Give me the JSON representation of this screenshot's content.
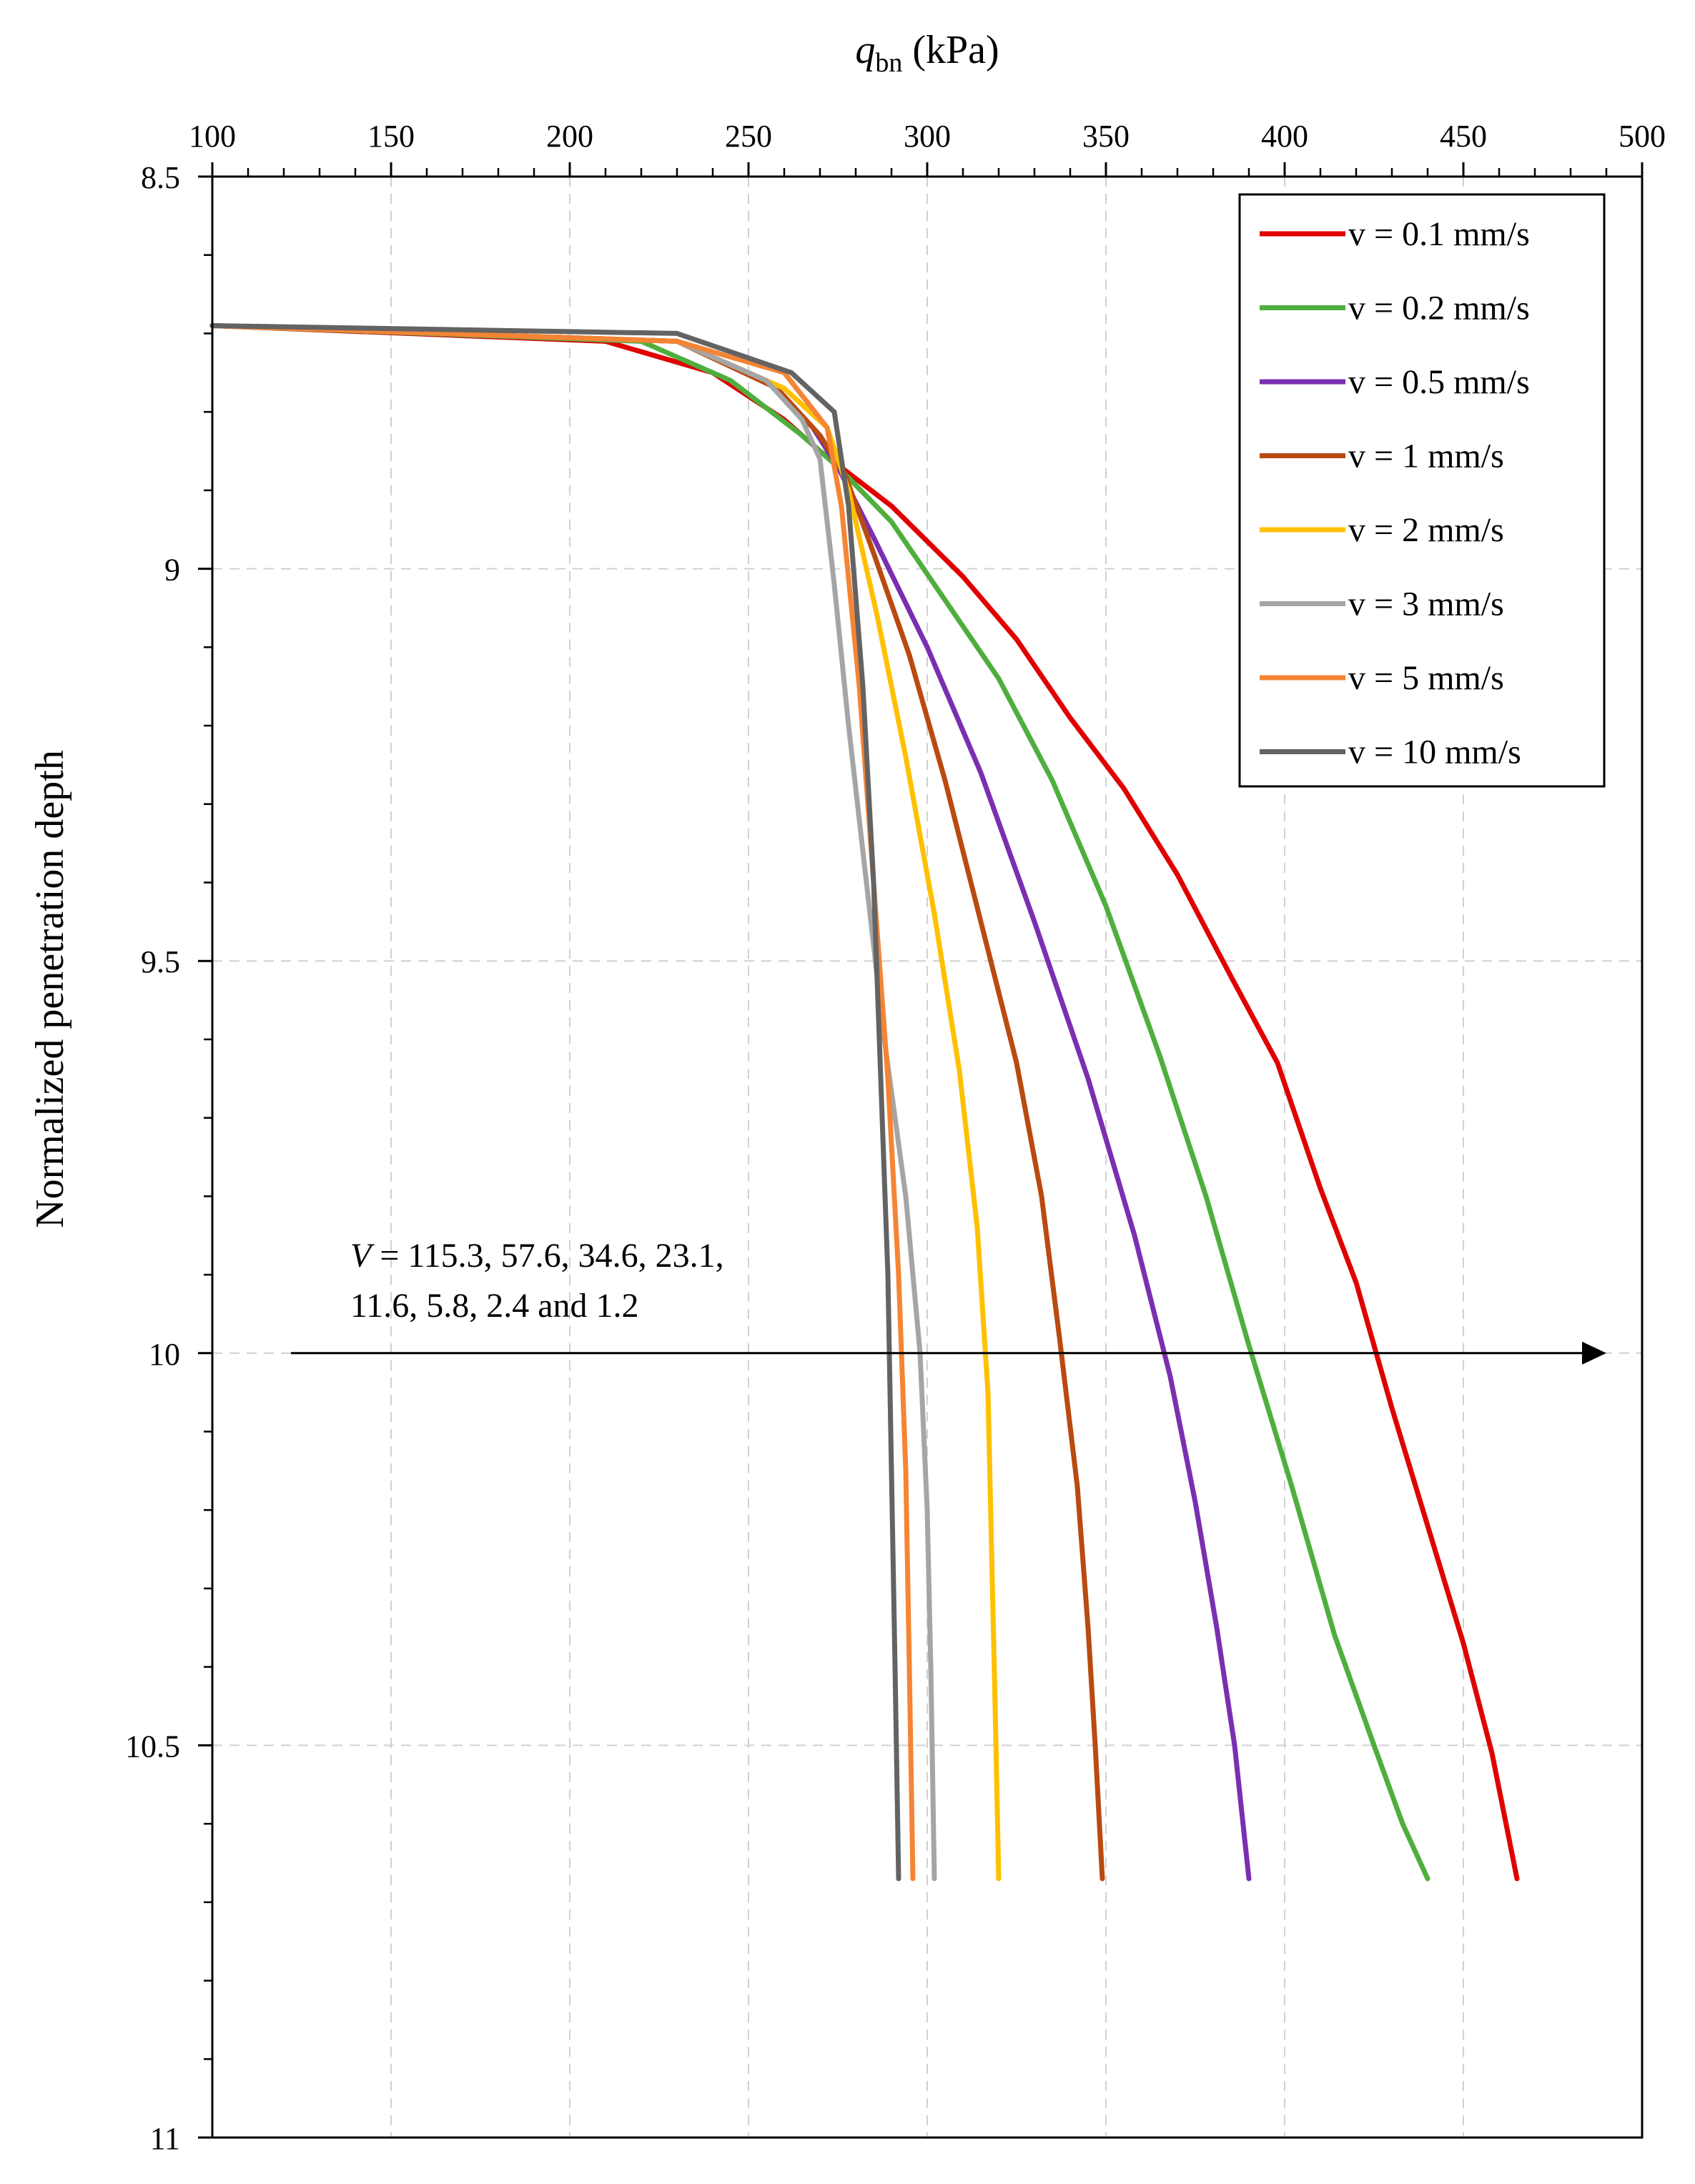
{
  "chart_data": {
    "type": "line",
    "title": "",
    "xlabel": {
      "italic": "q",
      "sub": "bn",
      "rest": " (kPa)"
    },
    "ylabel": "Normalized penetration depth",
    "xlim": [
      100,
      500
    ],
    "ylim": [
      8.5,
      11
    ],
    "y_inverted": true,
    "x_axis_position": "top",
    "x_ticks": [
      "100",
      "150",
      "200",
      "250",
      "300",
      "350",
      "400",
      "450",
      "500"
    ],
    "y_ticks": [
      "8.5",
      "9",
      "9.5",
      "10",
      "10.5",
      "11"
    ],
    "grid": "dashed",
    "legend_position": "top-right",
    "series": [
      {
        "name": "v = 0.1 mm/s",
        "color": "#e00000",
        "points": [
          [
            100,
            8.69
          ],
          [
            210,
            8.71
          ],
          [
            240,
            8.75
          ],
          [
            260,
            8.81
          ],
          [
            270,
            8.85
          ],
          [
            290,
            8.92
          ],
          [
            310,
            9.01
          ],
          [
            325,
            9.09
          ],
          [
            340,
            9.19
          ],
          [
            355,
            9.28
          ],
          [
            370,
            9.39
          ],
          [
            385,
            9.52
          ],
          [
            398,
            9.63
          ],
          [
            410,
            9.79
          ],
          [
            420,
            9.91
          ],
          [
            430,
            10.07
          ],
          [
            440,
            10.22
          ],
          [
            450,
            10.37
          ],
          [
            458,
            10.51
          ],
          [
            465,
            10.67
          ]
        ]
      },
      {
        "name": "v = 0.2 mm/s",
        "color": "#4fae3e",
        "points": [
          [
            100,
            8.69
          ],
          [
            220,
            8.71
          ],
          [
            245,
            8.76
          ],
          [
            265,
            8.83
          ],
          [
            275,
            8.87
          ],
          [
            290,
            8.94
          ],
          [
            305,
            9.04
          ],
          [
            320,
            9.14
          ],
          [
            335,
            9.27
          ],
          [
            350,
            9.43
          ],
          [
            365,
            9.62
          ],
          [
            378,
            9.8
          ],
          [
            390,
            9.99
          ],
          [
            402,
            10.17
          ],
          [
            414,
            10.36
          ],
          [
            425,
            10.5
          ],
          [
            433,
            10.6
          ],
          [
            440,
            10.67
          ]
        ]
      },
      {
        "name": "v = 0.5 mm/s",
        "color": "#7a2fb0",
        "points": [
          [
            100,
            8.69
          ],
          [
            230,
            8.71
          ],
          [
            255,
            8.76
          ],
          [
            268,
            8.82
          ],
          [
            275,
            8.87
          ],
          [
            285,
            8.96
          ],
          [
            300,
            9.1
          ],
          [
            315,
            9.26
          ],
          [
            330,
            9.45
          ],
          [
            345,
            9.65
          ],
          [
            358,
            9.85
          ],
          [
            368,
            10.03
          ],
          [
            375,
            10.19
          ],
          [
            381,
            10.35
          ],
          [
            386,
            10.5
          ],
          [
            390,
            10.67
          ]
        ]
      },
      {
        "name": "v = 1 mm/s",
        "color": "#b94a10",
        "points": [
          [
            100,
            8.69
          ],
          [
            230,
            8.71
          ],
          [
            258,
            8.77
          ],
          [
            270,
            8.83
          ],
          [
            277,
            8.88
          ],
          [
            285,
            8.98
          ],
          [
            295,
            9.11
          ],
          [
            305,
            9.27
          ],
          [
            315,
            9.45
          ],
          [
            325,
            9.63
          ],
          [
            332,
            9.8
          ],
          [
            337,
            9.98
          ],
          [
            342,
            10.17
          ],
          [
            345,
            10.35
          ],
          [
            347,
            10.5
          ],
          [
            349,
            10.67
          ]
        ]
      },
      {
        "name": "v = 2 mm/s",
        "color": "#ffc000",
        "points": [
          [
            100,
            8.69
          ],
          [
            230,
            8.71
          ],
          [
            260,
            8.77
          ],
          [
            272,
            8.82
          ],
          [
            278,
            8.9
          ],
          [
            286,
            9.06
          ],
          [
            294,
            9.24
          ],
          [
            302,
            9.44
          ],
          [
            309,
            9.64
          ],
          [
            314,
            9.84
          ],
          [
            317,
            10.05
          ],
          [
            318,
            10.25
          ],
          [
            319,
            10.45
          ],
          [
            320,
            10.67
          ]
        ]
      },
      {
        "name": "v = 3 mm/s",
        "color": "#a5a5a5",
        "points": [
          [
            100,
            8.69
          ],
          [
            230,
            8.71
          ],
          [
            255,
            8.76
          ],
          [
            265,
            8.81
          ],
          [
            270,
            8.86
          ],
          [
            274,
            9.02
          ],
          [
            278,
            9.2
          ],
          [
            283,
            9.4
          ],
          [
            288,
            9.6
          ],
          [
            294,
            9.8
          ],
          [
            298,
            10.0
          ],
          [
            300,
            10.2
          ],
          [
            301,
            10.4
          ],
          [
            302,
            10.67
          ]
        ]
      },
      {
        "name": "v = 5 mm/s",
        "color": "#f58434",
        "points": [
          [
            100,
            8.69
          ],
          [
            230,
            8.71
          ],
          [
            260,
            8.75
          ],
          [
            272,
            8.82
          ],
          [
            276,
            8.92
          ],
          [
            281,
            9.15
          ],
          [
            285,
            9.4
          ],
          [
            289,
            9.65
          ],
          [
            292,
            9.9
          ],
          [
            294,
            10.15
          ],
          [
            295,
            10.4
          ],
          [
            296,
            10.67
          ]
        ]
      },
      {
        "name": "v = 10 mm/s",
        "color": "#636363",
        "points": [
          [
            100,
            8.69
          ],
          [
            230,
            8.7
          ],
          [
            262,
            8.75
          ],
          [
            274,
            8.8
          ],
          [
            278,
            8.92
          ],
          [
            282,
            9.15
          ],
          [
            285,
            9.4
          ],
          [
            287,
            9.65
          ],
          [
            289,
            9.9
          ],
          [
            290,
            10.15
          ],
          [
            291,
            10.4
          ],
          [
            292,
            10.67
          ]
        ]
      }
    ],
    "annotation": {
      "line1_italic": "V",
      "line1_rest": " = 115.3, 57.6, 34.6, 23.1,",
      "line2": "11.6, 5.8, 2.4 and 1.2",
      "arrow_from": [
        122,
        10.0
      ],
      "arrow_to": [
        490,
        10.0
      ]
    }
  }
}
